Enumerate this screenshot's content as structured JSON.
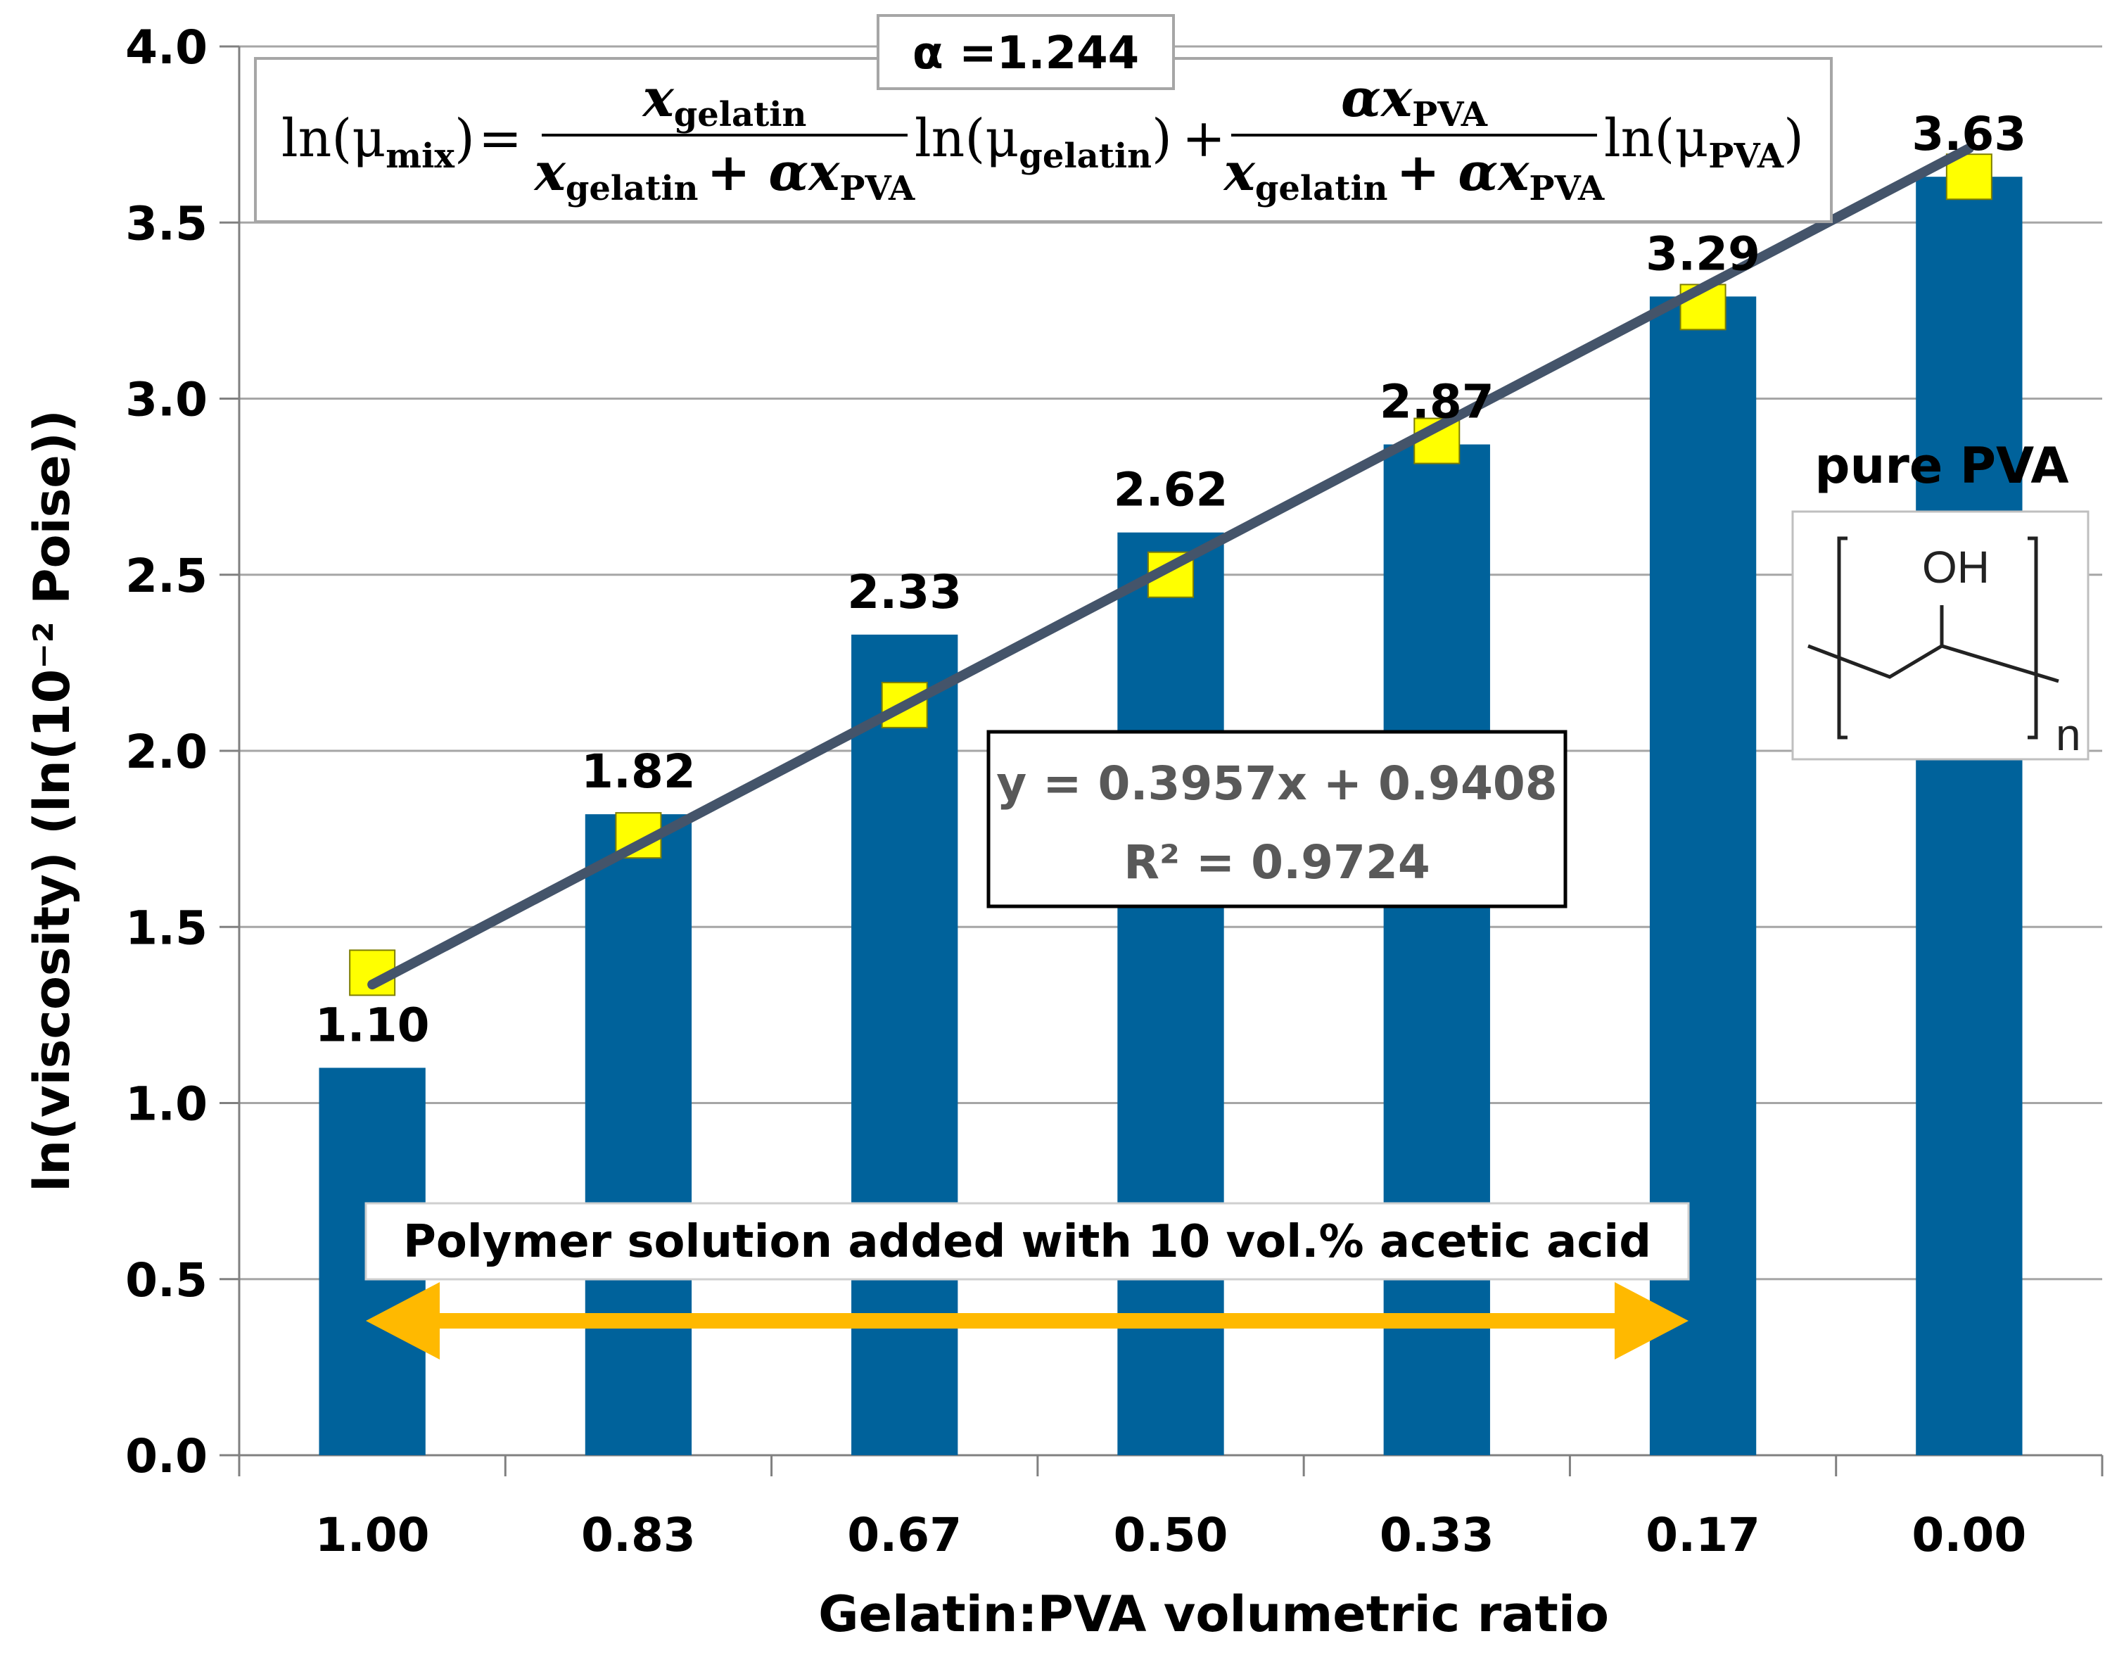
{
  "chart_data": {
    "type": "bar",
    "categories": [
      "1.00",
      "0.83",
      "0.67",
      "0.50",
      "0.33",
      "0.17",
      "0.00"
    ],
    "values": [
      1.1,
      1.82,
      2.33,
      2.62,
      2.87,
      3.29,
      3.63
    ],
    "value_labels": [
      "1.10",
      "1.82",
      "2.33",
      "2.62",
      "2.87",
      "3.29",
      "3.63"
    ],
    "model_points": [
      1.37,
      1.76,
      2.13,
      2.5,
      2.88,
      3.26,
      3.63
    ],
    "trendline": {
      "slope": 0.3957,
      "intercept": 0.9408,
      "equation": "y = 0.3957x + 0.9408",
      "r_squared": "R² = 0.9724"
    },
    "xlabel": "Gelatin:PVA volumetric ratio",
    "ylabel": "ln(viscosity) (ln(10⁻² Poise))",
    "ylim": [
      0,
      4
    ],
    "yticks": [
      "0.0",
      "0.5",
      "1.0",
      "1.5",
      "2.0",
      "2.5",
      "3.0",
      "3.5",
      "4.0"
    ],
    "grid": true,
    "colors": {
      "bar": "#00629B",
      "marker": "#FFFF00",
      "trend": "#44546A",
      "arrow": "#FFB900"
    }
  },
  "annotations": {
    "alpha": "α =1.244",
    "formula": {
      "lhs": "ln(μ",
      "lhs_sub": "mix",
      "term1_num": "x",
      "term1_num_sub": "gelatin",
      "den_x1": "x",
      "den_sub1": "gelatin",
      "den_plus": "+ αx",
      "den_sub2": "PVA",
      "ln1": "ln(μ",
      "ln1_sub": "gelatin",
      "term2_num": "αx",
      "term2_num_sub": "PVA",
      "ln2": "ln(μ",
      "ln2_sub": "PVA",
      "close": ")",
      "equals": "=",
      "plus": "+"
    },
    "note": "Polymer solution added with 10 vol.% acetic acid",
    "pure_label": "pure PVA",
    "structure": {
      "group": "OH",
      "repeat": "n"
    }
  }
}
